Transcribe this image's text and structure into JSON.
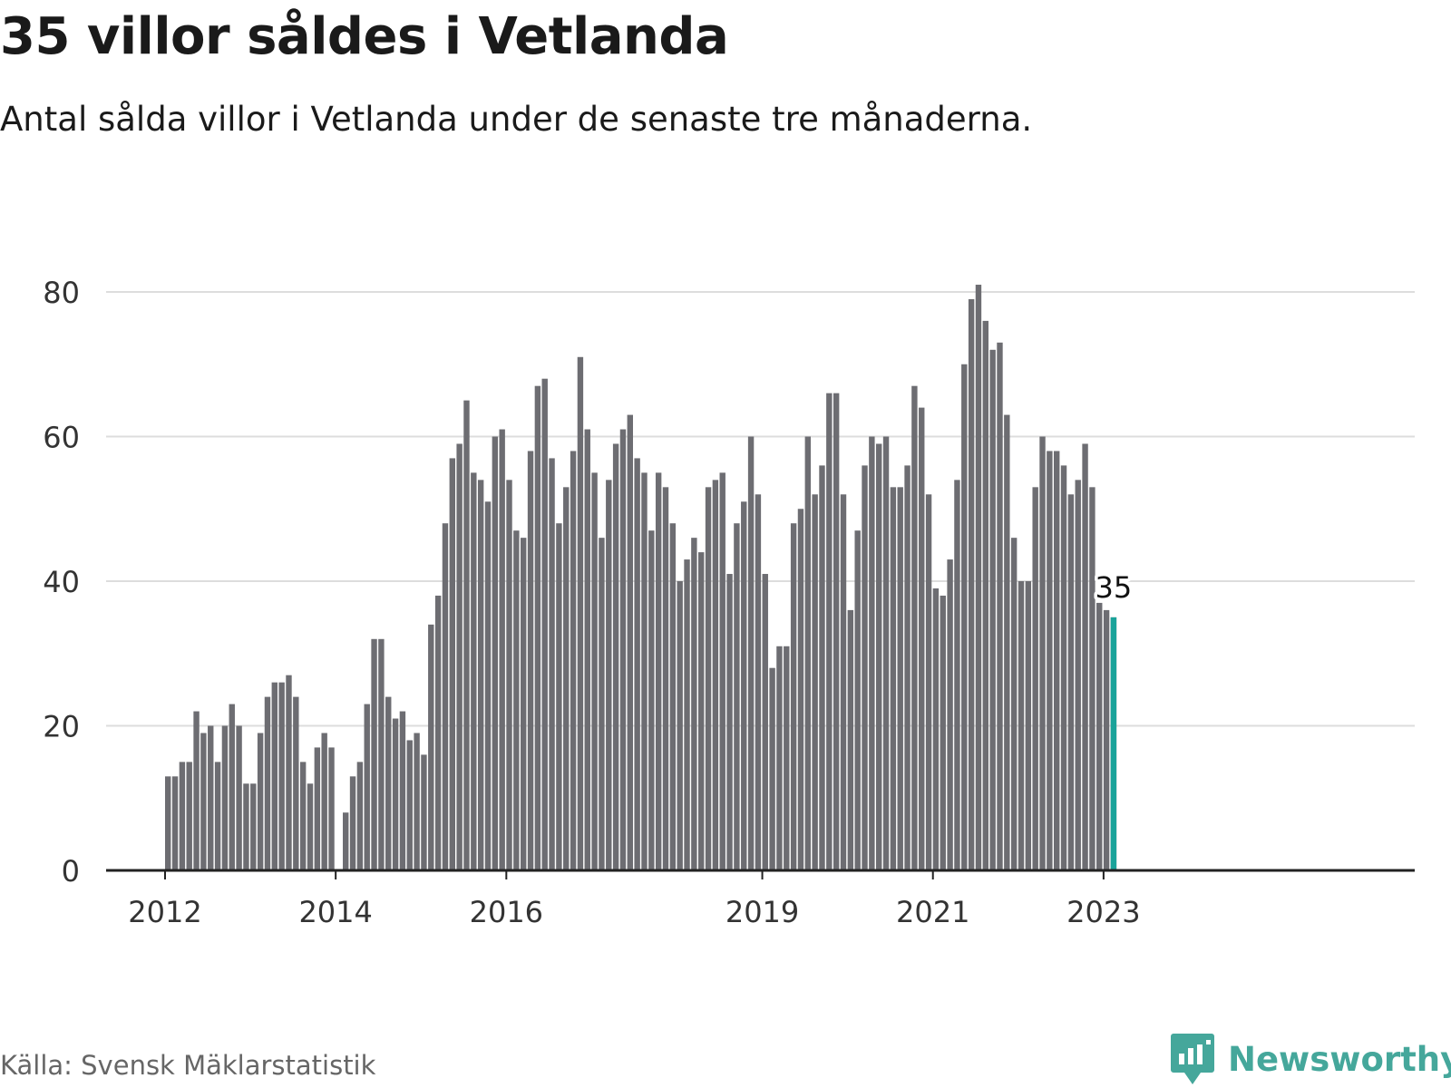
{
  "title": "35 villor såldes i Vetlanda",
  "subtitle": "Antal sålda villor i Vetlanda under de senaste tre månaderna.",
  "source": "Källa: Svensk Mäklarstatistik",
  "brand": {
    "name": "Newsworthy",
    "icon": "newsworthy-logo-icon"
  },
  "colors": {
    "bar": "#6d6d72",
    "highlight": "#1aa39a",
    "grid": "#dddddd",
    "axis": "#222222",
    "brand": "#45a79b"
  },
  "chart_data": {
    "type": "bar",
    "title": "35 villor såldes i Vetlanda",
    "xlabel": "",
    "ylabel": "",
    "ylim": [
      0,
      80
    ],
    "yticks": [
      0,
      20,
      40,
      60,
      80
    ],
    "grid": true,
    "first_period": "2012-01",
    "xtick_labels": [
      {
        "label": "2012",
        "index": 0
      },
      {
        "label": "2014",
        "index": 24
      },
      {
        "label": "2016",
        "index": 48
      },
      {
        "label": "2019",
        "index": 84
      },
      {
        "label": "2021",
        "index": 108
      },
      {
        "label": "2023",
        "index": 132
      }
    ],
    "values": [
      13,
      13,
      15,
      15,
      22,
      19,
      20,
      15,
      20,
      23,
      20,
      12,
      12,
      19,
      24,
      26,
      26,
      27,
      24,
      15,
      12,
      17,
      19,
      17,
      0,
      8,
      13,
      15,
      23,
      32,
      32,
      24,
      21,
      22,
      18,
      19,
      16,
      34,
      38,
      48,
      57,
      59,
      65,
      55,
      54,
      51,
      60,
      61,
      54,
      47,
      46,
      58,
      67,
      68,
      57,
      48,
      53,
      58,
      71,
      61,
      55,
      46,
      54,
      59,
      61,
      63,
      57,
      55,
      47,
      55,
      53,
      48,
      40,
      43,
      46,
      44,
      53,
      54,
      55,
      41,
      48,
      51,
      60,
      52,
      41,
      28,
      31,
      31,
      48,
      50,
      60,
      52,
      56,
      66,
      66,
      52,
      36,
      47,
      56,
      60,
      59,
      60,
      53,
      53,
      56,
      67,
      64,
      52,
      39,
      38,
      43,
      54,
      70,
      79,
      81,
      76,
      72,
      73,
      63,
      46,
      40,
      40,
      53,
      60,
      58,
      58,
      56,
      52,
      54,
      59,
      53,
      37,
      36,
      35
    ],
    "highlight": {
      "index": 133,
      "value": 35,
      "label": "35"
    }
  }
}
